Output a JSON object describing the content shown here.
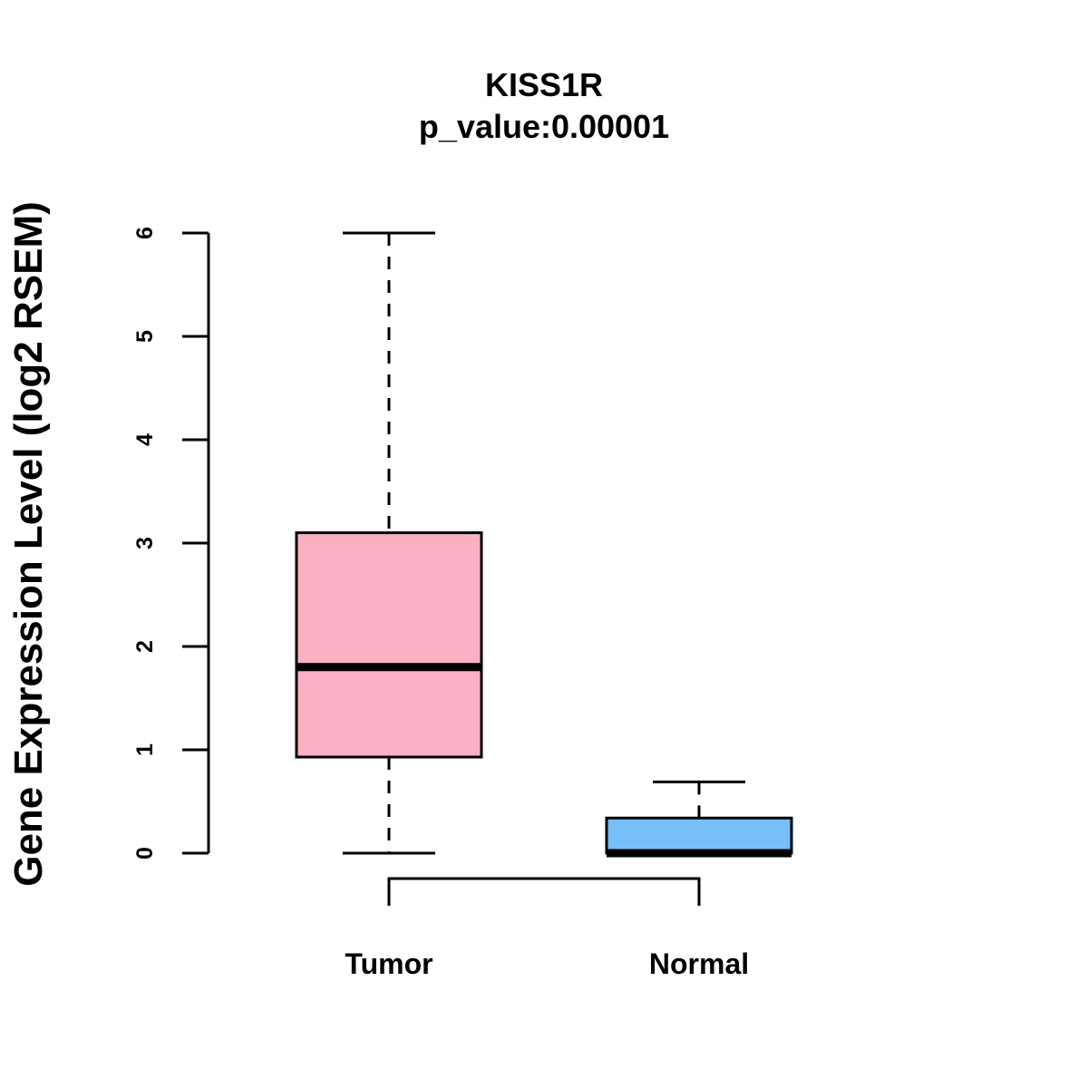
{
  "chart_data": {
    "type": "box",
    "title": "KISS1R",
    "subtitle": "p_value:0.00001",
    "xlabel": "",
    "ylabel": "Gene Expression Level (log2 RSEM)",
    "ylim": [
      0,
      6
    ],
    "yticks": [
      0,
      1,
      2,
      3,
      4,
      5,
      6
    ],
    "grid": false,
    "categories": [
      "Tumor",
      "Normal"
    ],
    "colors": [
      "#FBB1C3",
      "#77BFF9"
    ],
    "boxes": [
      {
        "name": "Tumor",
        "min": 0,
        "q1": 0.93,
        "median": 1.8,
        "q3": 3.1,
        "max": 6.0
      },
      {
        "name": "Normal",
        "min": 0,
        "q1": 0,
        "median": 0,
        "q3": 0.34,
        "max": 0.69
      }
    ],
    "comparison_bracket": [
      "Tumor",
      "Normal"
    ]
  }
}
